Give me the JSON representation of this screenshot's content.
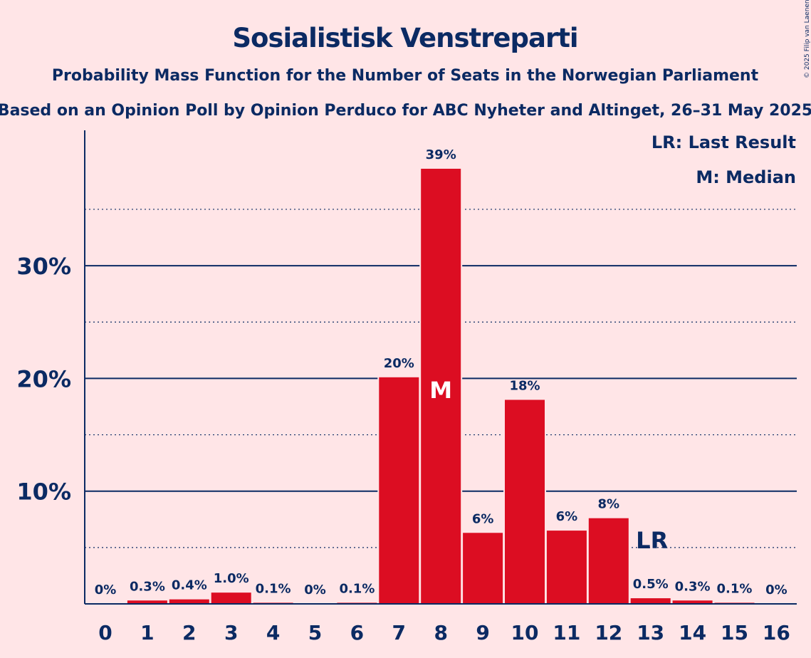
{
  "chart_data": {
    "type": "bar",
    "title": "Sosialistisk Venstreparti",
    "subtitle": "Probability Mass Function for the Number of Seats in the Norwegian Parliament",
    "source": "Based on an Opinion Poll by Opinion Perduco for ABC Nyheter and Altinget, 26–31 May 2025",
    "copyright": "© 2025 Filip van Laenen",
    "categories": [
      "0",
      "1",
      "2",
      "3",
      "4",
      "5",
      "6",
      "7",
      "8",
      "9",
      "10",
      "11",
      "12",
      "13",
      "14",
      "15",
      "16"
    ],
    "values": [
      0,
      0.3,
      0.4,
      1.0,
      0.1,
      0,
      0.1,
      20.1,
      38.6,
      6.3,
      18.1,
      6.5,
      7.6,
      0.5,
      0.3,
      0.1,
      0
    ],
    "data_labels": [
      "0%",
      "0.3%",
      "0.4%",
      "1.0%",
      "0.1%",
      "0%",
      "0.1%",
      "20%",
      "39%",
      "6%",
      "18%",
      "6%",
      "8%",
      "0.5%",
      "0.3%",
      "0.1%",
      "0%"
    ],
    "ylim": [
      0,
      42
    ],
    "y_ticks": [
      {
        "value": 10,
        "label": "10%"
      },
      {
        "value": 20,
        "label": "20%"
      },
      {
        "value": 30,
        "label": "30%"
      }
    ],
    "minor_gridlines": [
      5,
      15,
      25,
      35
    ],
    "median": {
      "seat": "8",
      "marker": "M"
    },
    "last_result": {
      "seat": "13",
      "marker": "LR"
    },
    "legend": {
      "position": "top-right",
      "items": [
        "LR: Last Result",
        "M: Median"
      ]
    },
    "colors": {
      "bar": "#DC0D22",
      "text": "#0B2A63",
      "background": "#FFE5E7",
      "gridline": "#0B2A63"
    }
  }
}
